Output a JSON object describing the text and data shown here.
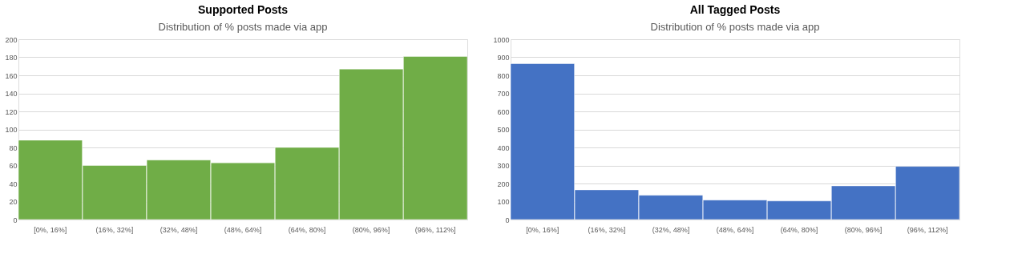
{
  "chart_data": [
    {
      "type": "bar",
      "title": "Supported Posts",
      "subtitle": "Distribution of % posts made via app",
      "categories": [
        "[0%, 16%]",
        "(16%, 32%]",
        "(32%, 48%]",
        "(48%, 64%]",
        "(64%, 80%]",
        "(80%, 96%]",
        "(96%, 112%]"
      ],
      "values": [
        88,
        60,
        66,
        63,
        80,
        167,
        181
      ],
      "color": "#70ad47",
      "ylim": [
        0,
        200
      ],
      "yticks": [
        0,
        20,
        40,
        60,
        80,
        100,
        120,
        140,
        160,
        180,
        200
      ],
      "grid": "y"
    },
    {
      "type": "bar",
      "title": "All Tagged Posts",
      "subtitle": "Distribution of % posts made via app",
      "categories": [
        "[0%, 16%]",
        "(16%, 32%]",
        "(32%, 48%]",
        "(48%, 64%]",
        "(64%, 80%]",
        "(80%, 96%]",
        "(96%, 112%]"
      ],
      "values": [
        865,
        165,
        135,
        108,
        103,
        187,
        295
      ],
      "color": "#4472c4",
      "ylim": [
        0,
        1000
      ],
      "yticks": [
        0,
        100,
        200,
        300,
        400,
        500,
        600,
        700,
        800,
        900,
        1000
      ],
      "grid": "y"
    }
  ]
}
